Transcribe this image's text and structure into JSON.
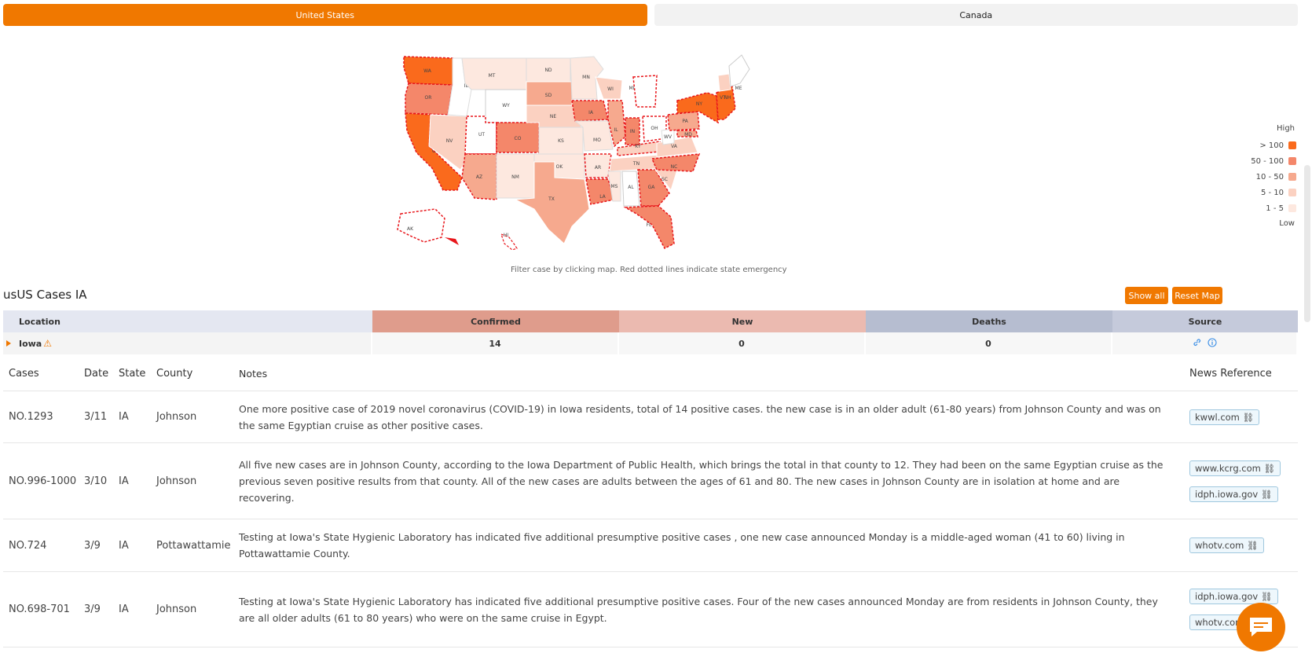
{
  "tabs": [
    {
      "label": "United States",
      "active": true
    },
    {
      "label": "Canada",
      "active": false
    }
  ],
  "map": {
    "caption": "Filter case by clicking map. Red dotted lines indicate state emergency",
    "states": [
      "WA",
      "OR",
      "CA",
      "NV",
      "AZ",
      "UT",
      "CO",
      "NM",
      "MT",
      "WY",
      "ID",
      "ND",
      "SD",
      "NE",
      "KS",
      "OK",
      "TX",
      "MN",
      "IA",
      "MO",
      "AR",
      "LA",
      "WI",
      "IL",
      "MS",
      "AL",
      "MI",
      "IN",
      "OH",
      "KY",
      "TN",
      "GA",
      "FL",
      "SC",
      "NC",
      "VA",
      "WV",
      "PA",
      "NY",
      "ME",
      "VT",
      "NH",
      "MD",
      "AK",
      "HI"
    ]
  },
  "legend": {
    "high_label": "High",
    "low_label": "Low",
    "items": [
      {
        "label": "> 100",
        "color": "#fa6a1c"
      },
      {
        "label": "50 - 100",
        "color": "#f4876a"
      },
      {
        "label": "10 - 50",
        "color": "#f6a98e"
      },
      {
        "label": "5 - 10",
        "color": "#fbd1c1"
      },
      {
        "label": "1 - 5",
        "color": "#fde8df"
      }
    ]
  },
  "cases_title": "usUS Cases IA",
  "buttons": {
    "show_all": "Show all",
    "reset_map": "Reset Map"
  },
  "summary": {
    "headers": {
      "location": "Location",
      "confirmed": "Confirmed",
      "new": "New",
      "deaths": "Deaths",
      "source": "Source"
    },
    "row": {
      "location": "Iowa",
      "warning_icon": "⚠",
      "confirmed": "14",
      "new": "0",
      "deaths": "0"
    }
  },
  "detail": {
    "headers": {
      "cases": "Cases",
      "date": "Date",
      "state": "State",
      "county": "County",
      "notes": "Notes",
      "news": "News Reference"
    },
    "rows": [
      {
        "case": "NO.1293",
        "date": "3/11",
        "state": "IA",
        "county": "Johnson",
        "notes": "One more positive case of 2019 novel coronavirus (COVID-19) in Iowa residents, total of 14 positive cases. the new case is in an older adult (61-80 years) from Johnson County and was on the same Egyptian cruise as other positive cases.",
        "refs": [
          "kwwl.com"
        ]
      },
      {
        "case": "NO.996-1000",
        "date": "3/10",
        "state": "IA",
        "county": "Johnson",
        "notes": "All five new cases are in Johnson County, according to the Iowa Department of Public Health, which brings the total in that county to 12. They had been on the same Egyptian cruise as the previous seven positive results from that county. All of the new cases are adults between the ages of 61 and 80. The new cases in Johnson County are in isolation at home and are recovering.",
        "refs": [
          "www.kcrg.com",
          "idph.iowa.gov"
        ]
      },
      {
        "case": "NO.724",
        "date": "3/9",
        "state": "IA",
        "county": "Pottawattamie",
        "notes": "Testing at Iowa's State Hygienic Laboratory has indicated five additional presumptive positive cases , one new case announced Monday is a middle-aged woman (41 to 60) living in Pottawattamie County.",
        "refs": [
          "whotv.com"
        ]
      },
      {
        "case": "NO.698-701",
        "date": "3/9",
        "state": "IA",
        "county": "Johnson",
        "notes": "Testing at Iowa's State Hygienic Laboratory has indicated five additional presumptive positive cases. Four of the new cases announced Monday are from residents in Johnson County, they are all older adults (61 to 80 years) who were on the same cruise in Egypt.",
        "refs": [
          "idph.iowa.gov",
          "whotv.com"
        ]
      }
    ]
  },
  "colors": {
    "accent": "#f07800",
    "emergency": "#e8161b"
  }
}
